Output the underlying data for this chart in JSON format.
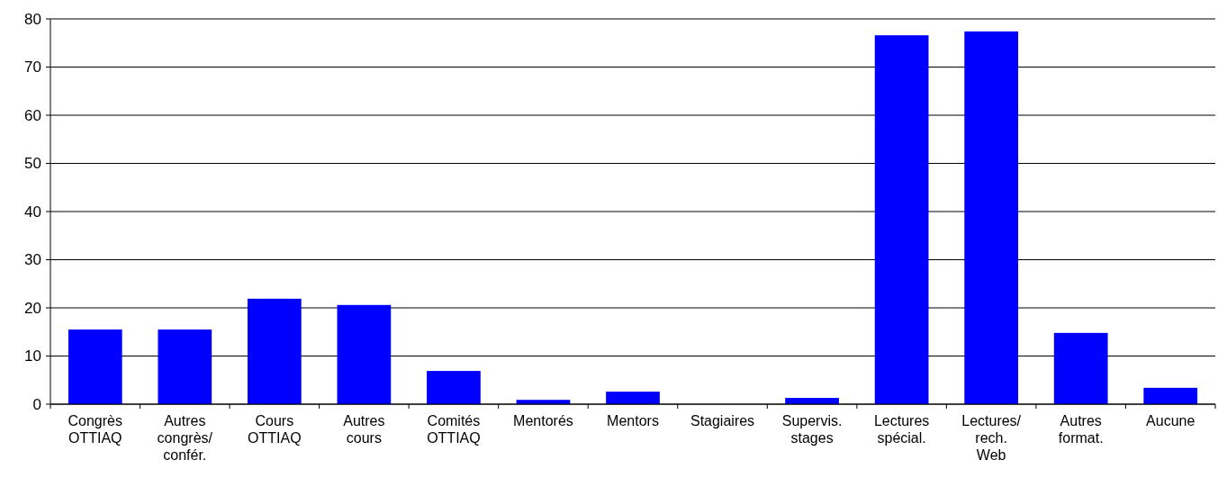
{
  "chart_data": {
    "type": "bar",
    "categories": [
      "Congrès\nOTTIAQ",
      "Autres\ncongrès/\nconfér.",
      "Cours\nOTTIAQ",
      "Autres\ncours",
      "Comités\nOTTIAQ",
      "Mentorés",
      "Mentors",
      "Stagiaires",
      "Supervis.\nstages",
      "Lectures\nspécial.",
      "Lectures/\nrech.\nWeb",
      "Autres\nformat.",
      "Aucune"
    ],
    "values": [
      15.5,
      15.5,
      21.9,
      20.6,
      6.9,
      0.9,
      2.6,
      0,
      1.3,
      76.6,
      77.4,
      14.8,
      3.4
    ],
    "color": "#0000ff",
    "ylim": [
      0,
      80
    ],
    "yticks": [
      0,
      10,
      20,
      30,
      40,
      50,
      60,
      70,
      80
    ],
    "grid": "y"
  }
}
